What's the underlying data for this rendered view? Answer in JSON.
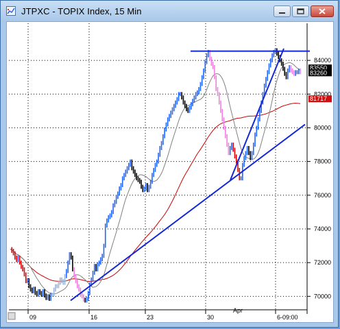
{
  "window": {
    "title": "JTPXC - TOPIX Index, 15 Min"
  },
  "chart_data": {
    "type": "line",
    "title": "JTPXC - TOPIX Index, 15 Min",
    "ylim": [
      6920,
      8620
    ],
    "y_ticks": [
      7000,
      7200,
      7400,
      7600,
      7800,
      8000,
      8200,
      8400
    ],
    "y_tick_labels": [
      "70000",
      "72000",
      "74000",
      "76000",
      "78000",
      "80000",
      "82000",
      "84000"
    ],
    "x_tick_labels": [
      "09",
      "16",
      "23",
      "30",
      "6-09:00"
    ],
    "x_month_label": "Apr",
    "grid": true,
    "price_badges": {
      "high": "83550",
      "last": "83260",
      "ma_long": "81717"
    },
    "colors": {
      "up": "#1e64ff",
      "down": "#000000",
      "neutral_up": "#9ab4d6",
      "down_red": "#e00000",
      "pink": "#f080e0",
      "ma_short": "#808080",
      "ma_long": "#cc0000",
      "trendline": "#1428d4"
    },
    "series": [
      {
        "values": [
          7280,
          7270,
          7255,
          7230,
          7215,
          7230,
          7200,
          7175,
          7160,
          7130,
          7090,
          7095,
          7060,
          7040,
          7030,
          7045,
          7020,
          7010,
          7030,
          7020,
          7010,
          7030,
          7005,
          6990,
          7000,
          6985,
          7010,
          7010,
          7040,
          7060,
          7060,
          7080,
          7100,
          7090,
          7080,
          7120,
          7150,
          7200,
          7250,
          7230,
          7160,
          7120,
          7090,
          7060,
          7040,
          7010,
          7000,
          6980,
          6975,
          6985,
          7020,
          7070,
          7100,
          7140,
          7180,
          7160,
          7190,
          7200,
          7220,
          7240,
          7300,
          7420,
          7450,
          7470,
          7480,
          7500,
          7540,
          7560,
          7590,
          7610,
          7640,
          7660,
          7700,
          7720,
          7740,
          7760,
          7780,
          7800,
          7760,
          7740,
          7720,
          7700,
          7690,
          7680,
          7650,
          7630,
          7640,
          7660,
          7630,
          7650,
          7680,
          7720,
          7750,
          7780,
          7800,
          7840,
          7880,
          7910,
          7950,
          7990,
          8020,
          8050,
          8070,
          8090,
          8110,
          8130,
          8150,
          8170,
          8200,
          8200,
          8180,
          8150,
          8130,
          8110,
          8100,
          8120,
          8140,
          8160,
          8180,
          8200,
          8210,
          8230,
          8260,
          8300,
          8340,
          8390,
          8430,
          8450,
          8410,
          8380,
          8360,
          8300,
          8230,
          8200,
          8150,
          8100,
          8050,
          8000,
          7950,
          7900,
          7850,
          7880,
          7900,
          7870,
          7830,
          7800,
          7750,
          7700,
          7700,
          7780,
          7820,
          7850,
          7880,
          7850,
          7820,
          7850,
          7900,
          7960,
          8000,
          8050,
          8100,
          8150,
          8200,
          8250,
          8290,
          8330,
          8370,
          8400,
          8430,
          8450,
          8460,
          8440,
          8420,
          8400,
          8380,
          8350,
          8320,
          8300,
          8340,
          8360,
          8340,
          8330,
          8320,
          8330,
          8330,
          8340,
          8330
        ]
      }
    ]
  }
}
